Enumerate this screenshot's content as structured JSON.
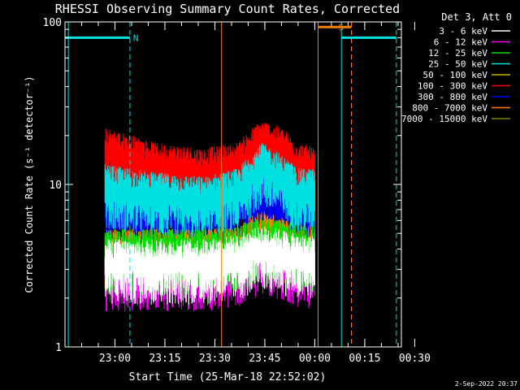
{
  "chart_data": {
    "type": "line",
    "title": "RHESSI Observing Summary Count Rates, Corrected",
    "ylabel": "Corrected Count Rate (s⁻¹ detector⁻¹)",
    "xlabel": "Start Time (25-Mar-18 22:52:02)",
    "footer": "2-Sep-2022 20:37",
    "y_scale": "log",
    "ylim": [
      1,
      100
    ],
    "y_ticks": [
      {
        "v": 1,
        "label": "1"
      },
      {
        "v": 10,
        "label": "10"
      },
      {
        "v": 100,
        "label": "100"
      }
    ],
    "xlim_min": [
      -7,
      94
    ],
    "x_ticks": [
      {
        "m": 8,
        "label": "23:00"
      },
      {
        "m": 23,
        "label": "23:15"
      },
      {
        "m": 38,
        "label": "23:30"
      },
      {
        "m": 53,
        "label": "23:45"
      },
      {
        "m": 68,
        "label": "00:00"
      },
      {
        "m": 83,
        "label": "00:15"
      },
      {
        "m": 98,
        "label": "00:30"
      }
    ],
    "grid": false,
    "legend_title": "Det 3, Att 0",
    "legend_position": "top-right",
    "series": [
      {
        "name": "3 - 6 keV",
        "color": "#ffffff"
      },
      {
        "name": "6 - 12 keV",
        "color": "#ff00ff"
      },
      {
        "name": "12 - 25 keV",
        "color": "#00e000"
      },
      {
        "name": "25 - 50 keV",
        "color": "#00e0e0"
      },
      {
        "name": "50 - 100 keV",
        "color": "#c8b400"
      },
      {
        "name": "100 - 300 keV",
        "color": "#ff0000"
      },
      {
        "name": "300 - 800 keV",
        "color": "#0000ff"
      },
      {
        "name": "800 - 7000 keV",
        "color": "#ff8000"
      },
      {
        "name": "7000 - 15000 keV",
        "color": "#808000"
      }
    ],
    "data_window_min": [
      5,
      68
    ],
    "series_profiles": [
      {
        "series": "300 - 800 keV",
        "x": [
          5,
          20,
          35,
          45,
          52,
          58,
          63,
          68
        ],
        "y": [
          7.5,
          7,
          7,
          7.5,
          9,
          8,
          7,
          7
        ]
      },
      {
        "series": "100 - 300 keV",
        "x": [
          5,
          20,
          35,
          45,
          52,
          58,
          63,
          68
        ],
        "y": [
          16,
          13,
          12,
          13,
          18,
          16,
          13,
          12
        ]
      },
      {
        "series": "25 - 50 keV",
        "x": [
          5,
          20,
          35,
          45,
          52,
          58,
          63,
          68
        ],
        "y": [
          9.5,
          8.5,
          8,
          9,
          13,
          11,
          9,
          9
        ]
      },
      {
        "series": "800 - 7000 keV",
        "x": [
          5,
          20,
          35,
          45,
          52,
          58,
          63,
          68
        ],
        "y": [
          3.8,
          3.8,
          3.8,
          4,
          5,
          4.5,
          4,
          4
        ]
      },
      {
        "series": "6 - 12 keV",
        "x": [
          5,
          20,
          35,
          45,
          52,
          58,
          63,
          68
        ],
        "y": [
          3,
          3,
          3,
          3.2,
          3.8,
          3.5,
          3.2,
          3
        ]
      },
      {
        "series": "12 - 25 keV",
        "x": [
          5,
          20,
          35,
          45,
          52,
          58,
          63,
          68
        ],
        "y": [
          3.8,
          3.8,
          3.8,
          4,
          4.5,
          4.3,
          4,
          4
        ]
      },
      {
        "series": "3 - 6 keV",
        "x": [
          5,
          20,
          35,
          45,
          52,
          58,
          63,
          68
        ],
        "y": [
          3.3,
          3.3,
          3.3,
          3.5,
          4,
          3.8,
          3.5,
          3.5
        ]
      }
    ],
    "flag_bars": [
      {
        "label": "N",
        "from_min": -7,
        "to_min": 12.5,
        "level": 80,
        "color": "#00e0e0"
      },
      {
        "label": "",
        "from_min": 76,
        "to_min": 92.5,
        "level": 80,
        "color": "#00e0e0"
      },
      {
        "label": "S",
        "from_min": 69,
        "to_min": 79,
        "level": 93,
        "color": "#ff8000"
      }
    ],
    "vertical_markers": [
      {
        "min": -6,
        "color": "#00e0e0",
        "style": "solid"
      },
      {
        "min": 12.5,
        "color": "#00e0e0",
        "style": "dashed"
      },
      {
        "min": 76,
        "color": "#00e0e0",
        "style": "solid"
      },
      {
        "min": 92.5,
        "color": "#00e0e0",
        "style": "dashed"
      },
      {
        "min": 69,
        "color": "#ff8000",
        "style": "solid"
      },
      {
        "min": 79,
        "color": "#ff8000",
        "style": "dashed"
      },
      {
        "min": 40,
        "color": "#ff8000",
        "style": "solid"
      }
    ]
  }
}
